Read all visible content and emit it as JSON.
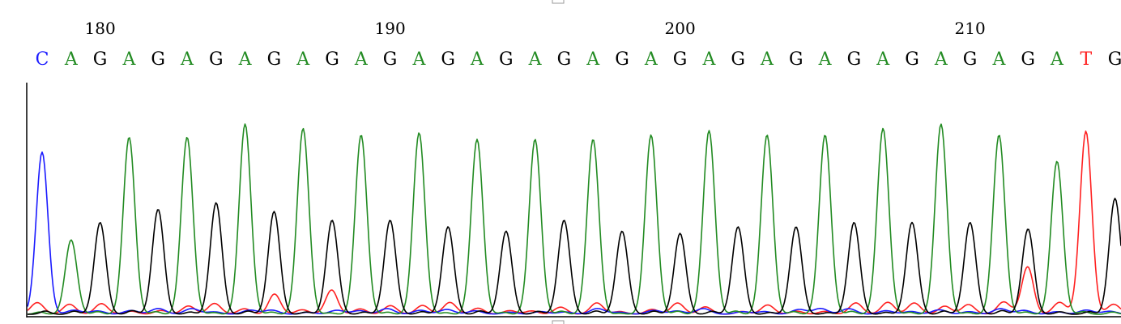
{
  "chart_data": {
    "type": "line",
    "title": "",
    "xlabel": "",
    "ylabel": "",
    "position_ticks": [
      "180",
      "190",
      "200",
      "210"
    ],
    "first_position": 178,
    "sequence": [
      "C",
      "A",
      "G",
      "A",
      "G",
      "A",
      "G",
      "A",
      "G",
      "A",
      "G",
      "A",
      "G",
      "A",
      "G",
      "A",
      "G",
      "A",
      "G",
      "A",
      "G",
      "A",
      "G",
      "A",
      "G",
      "A",
      "G",
      "A",
      "G",
      "A",
      "G",
      "A",
      "G",
      "A",
      "G",
      "A",
      "T",
      "G"
    ],
    "colors": {
      "A": "#228b22",
      "C": "#1a1aff",
      "G": "#000000",
      "T": "#ff2020"
    },
    "ylim": [
      0,
      1
    ],
    "peaks": [
      {
        "base": "C",
        "height": 0.73
      },
      {
        "base": "A",
        "height": 0.34
      },
      {
        "base": "G",
        "height": 0.42
      },
      {
        "base": "A",
        "height": 0.81
      },
      {
        "base": "G",
        "height": 0.48
      },
      {
        "base": "A",
        "height": 0.81
      },
      {
        "base": "G",
        "height": 0.51
      },
      {
        "base": "A",
        "height": 0.87
      },
      {
        "base": "G",
        "height": 0.47
      },
      {
        "base": "A",
        "height": 0.85
      },
      {
        "base": "G",
        "height": 0.43
      },
      {
        "base": "A",
        "height": 0.82
      },
      {
        "base": "G",
        "height": 0.43
      },
      {
        "base": "A",
        "height": 0.83
      },
      {
        "base": "G",
        "height": 0.4
      },
      {
        "base": "A",
        "height": 0.8
      },
      {
        "base": "G",
        "height": 0.38
      },
      {
        "base": "A",
        "height": 0.8
      },
      {
        "base": "G",
        "height": 0.43
      },
      {
        "base": "A",
        "height": 0.8
      },
      {
        "base": "G",
        "height": 0.38
      },
      {
        "base": "A",
        "height": 0.82
      },
      {
        "base": "G",
        "height": 0.37
      },
      {
        "base": "A",
        "height": 0.84
      },
      {
        "base": "G",
        "height": 0.4
      },
      {
        "base": "A",
        "height": 0.82
      },
      {
        "base": "G",
        "height": 0.4
      },
      {
        "base": "A",
        "height": 0.82
      },
      {
        "base": "G",
        "height": 0.42
      },
      {
        "base": "A",
        "height": 0.85
      },
      {
        "base": "G",
        "height": 0.42
      },
      {
        "base": "A",
        "height": 0.87
      },
      {
        "base": "G",
        "height": 0.42
      },
      {
        "base": "A",
        "height": 0.82
      },
      {
        "base": "G",
        "height": 0.39
      },
      {
        "base": "A",
        "height": 0.7
      },
      {
        "base": "T",
        "height": 0.8
      },
      {
        "base": "G",
        "height": 0.53
      }
    ]
  }
}
